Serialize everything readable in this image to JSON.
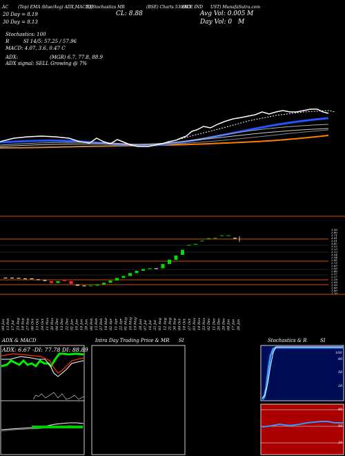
{
  "header": {
    "line1": {
      "p1": "AC",
      "p2": "(Top) EMA (blue/Avg) ADX,MACD,R",
      "p3": "SI,Stochastics MR",
      "p4": "(BSE) Charts 530093",
      "p5": "(ACE IND",
      "p6": "UST) MunafaSutra.com"
    },
    "close": "CL: 8.88",
    "avg_vol": "Avg Vol: 0.005",
    "avg_vol_unit": "M",
    "day_vol": "Day Vol: 0",
    "day_vol_unit": "M",
    "day20": "20 Day = 8.19",
    "day30": "30  Day = 8.13",
    "stochastics": "Stochastics: 100",
    "rsi": "SI 14/5: 57.25 / 57.96",
    "rsi_prefix": "R",
    "macd": "MACD: 4.07,  3.6,  0.47 C",
    "adx": "ADX:",
    "adx_vals": "(MGR) 6.7,  77.8,  88.9",
    "adx_signal": "ADX  signal: SELL  Growing @ 7%"
  },
  "price_axis_labels": [
    "3.90",
    "3.80",
    "3.71",
    "3.61",
    "3.51",
    "3.42",
    "3.32",
    "3.23",
    "3.13",
    "3.04",
    "2.94",
    "2.85",
    "2.75",
    "2.65",
    "2.56",
    "2.46",
    "2.37",
    "2.27",
    "2.18",
    "2.08",
    "1.99",
    "1.89",
    "1.80",
    "1.70"
  ],
  "date_labels": [
    "09 Jan",
    "13 Feb",
    "17 Jul",
    "23 Aug",
    "18 Sep",
    "27 Sep",
    "06 Oct",
    "15 Oct",
    "24 Oct",
    "11 Nov",
    "20 Nov",
    "04 Dec",
    "13 Dec",
    "22 Dec",
    "01 Jan",
    "10 Jan",
    "19 Jan",
    "28 Jan",
    "06 Feb",
    "15 Feb",
    "27 Feb",
    "18 Mar",
    "02 Apr",
    "11 Apr",
    "22 Apr",
    "01 May",
    "10 May",
    "19 May",
    "28 Jun",
    "07 Jul",
    "16 Jul",
    "25 Jul",
    "03 Aug",
    "12 Aug",
    "21 Aug",
    "30 Sep",
    "09 Oct",
    "18 Oct",
    "27 Oct",
    "05 Nov",
    "14 Nov",
    "23 Nov",
    "02 Dec",
    "11 Dec",
    "20 Dec",
    "29 Dec",
    "08 Jan",
    "17 Jan",
    "26 Jan"
  ],
  "panels": {
    "adx": {
      "title": "ADX  & MACD",
      "legend_adx": "ADX: 6.67",
      "legend_minus": "-DI: 77.78",
      "legend_plus": "DI: 88.89"
    },
    "intraday": {
      "title": "Intra  Day Trading Price  & MR",
      "title2": "SI"
    },
    "stoch": {
      "title": "Stochastics & R",
      "title2": "SI",
      "ticks": [
        "100",
        "80",
        "50",
        "20"
      ]
    },
    "rsi_ticks": [
      "80",
      "50",
      "20"
    ]
  },
  "chart_data": {
    "type": "candlestick",
    "close": 8.88,
    "ema20": 8.19,
    "ema30": 8.13,
    "candles": [
      {
        "o": 2.4,
        "c": 2.42,
        "dir": "down"
      },
      {
        "o": 2.42,
        "c": 2.4,
        "dir": "down"
      },
      {
        "o": 2.41,
        "c": 2.4,
        "dir": "down"
      },
      {
        "o": 2.39,
        "c": 2.39,
        "dir": "down"
      },
      {
        "o": 2.39,
        "c": 2.38,
        "dir": "down"
      },
      {
        "o": 2.36,
        "c": 2.35,
        "dir": "down"
      },
      {
        "o": 2.33,
        "c": 2.32,
        "dir": "down"
      },
      {
        "o": 2.3,
        "c": 2.23,
        "dir": "down"
      },
      {
        "o": 2.23,
        "c": 2.3,
        "dir": "up"
      },
      {
        "o": 2.35,
        "c": 2.3,
        "dir": "down"
      },
      {
        "o": 2.3,
        "c": 2.2,
        "dir": "down"
      },
      {
        "o": 2.17,
        "c": 2.14,
        "dir": "down"
      },
      {
        "o": 2.14,
        "c": 2.12,
        "dir": "down"
      },
      {
        "o": 2.12,
        "c": 2.14,
        "dir": "up"
      },
      {
        "o": 2.14,
        "c": 2.18,
        "dir": "up"
      },
      {
        "o": 2.18,
        "c": 2.24,
        "dir": "up"
      },
      {
        "o": 2.24,
        "c": 2.32,
        "dir": "up"
      },
      {
        "o": 2.32,
        "c": 2.41,
        "dir": "up"
      },
      {
        "o": 2.41,
        "c": 2.48,
        "dir": "up"
      },
      {
        "o": 2.48,
        "c": 2.58,
        "dir": "up"
      },
      {
        "o": 2.58,
        "c": 2.66,
        "dir": "up"
      },
      {
        "o": 2.66,
        "c": 2.72,
        "dir": "up"
      },
      {
        "o": 2.72,
        "c": 2.75,
        "dir": "up"
      },
      {
        "o": 2.75,
        "c": 2.75,
        "dir": "down"
      },
      {
        "o": 2.75,
        "c": 2.9,
        "dir": "up"
      },
      {
        "o": 2.9,
        "c": 3.05,
        "dir": "up"
      },
      {
        "o": 3.05,
        "c": 3.2,
        "dir": "up"
      },
      {
        "o": 3.22,
        "c": 3.4,
        "dir": "up"
      },
      {
        "o": 3.55,
        "c": 3.57,
        "dir": "up"
      },
      {
        "o": 3.6,
        "c": 3.61,
        "dir": "up"
      },
      {
        "o": 3.71,
        "c": 3.72,
        "dir": "up"
      },
      {
        "o": 3.8,
        "c": 3.81,
        "dir": "up"
      },
      {
        "o": 3.8,
        "c": 3.82,
        "dir": "up"
      },
      {
        "o": 3.9,
        "c": 3.91,
        "dir": "up"
      },
      {
        "o": 3.91,
        "c": 3.9,
        "dir": "up"
      },
      {
        "o": 3.82,
        "c": 3.8,
        "dir": "down"
      }
    ]
  }
}
